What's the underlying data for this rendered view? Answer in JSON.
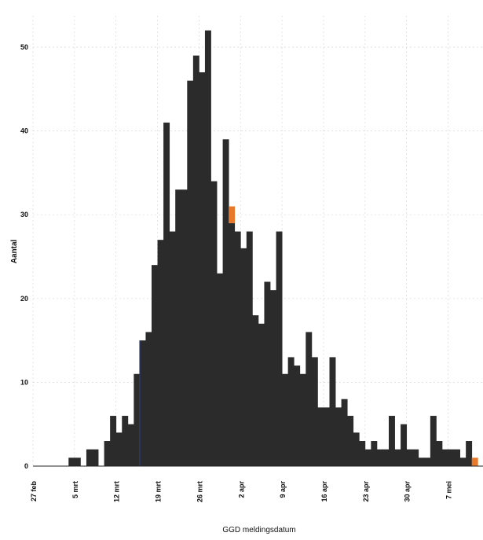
{
  "chart_data": {
    "type": "bar",
    "title": "",
    "xlabel": "GGD meldingsdatum",
    "ylabel": "Aantal",
    "ylim": [
      0,
      55
    ],
    "yticks": [
      0,
      10,
      20,
      30,
      40,
      50
    ],
    "grid": true,
    "legend": "none",
    "x_start": "27 feb",
    "x_end": "11 mei",
    "xtick_labels": [
      "27 feb",
      "5 mrt",
      "12 mrt",
      "19 mrt",
      "26 mrt",
      "2 apr",
      "9 apr",
      "16 apr",
      "23 apr",
      "30 apr",
      "7 mei"
    ],
    "series": [
      {
        "color": "#2b2b2b",
        "values": [
          0,
          0,
          0,
          0,
          0,
          0,
          1,
          1,
          0,
          2,
          2,
          0,
          3,
          6,
          4,
          6,
          5,
          11,
          15,
          16,
          24,
          27,
          41,
          28,
          33,
          33,
          46,
          49,
          47,
          52,
          34,
          23,
          39,
          29,
          28,
          26,
          28,
          18,
          17,
          22,
          21,
          28,
          11,
          13,
          12,
          11,
          16,
          13,
          7,
          7,
          13,
          7,
          8,
          6,
          4,
          3,
          2,
          3,
          2,
          2,
          6,
          2,
          5,
          2,
          2,
          1,
          1,
          6,
          3,
          2,
          2,
          2,
          1,
          3,
          0
        ]
      },
      {
        "color": "#e8782a",
        "values": [
          0,
          0,
          0,
          0,
          0,
          0,
          0,
          0,
          0,
          0,
          0,
          0,
          0,
          0,
          0,
          0,
          0,
          0,
          0,
          0,
          0,
          0,
          0,
          0,
          0,
          0,
          0,
          0,
          0,
          0,
          0,
          0,
          0,
          2,
          0,
          0,
          0,
          0,
          0,
          0,
          0,
          0,
          0,
          0,
          0,
          0,
          0,
          0,
          0,
          0,
          0,
          0,
          0,
          0,
          0,
          0,
          0,
          0,
          0,
          0,
          0,
          0,
          0,
          0,
          0,
          0,
          0,
          0,
          0,
          0,
          0,
          0,
          0,
          0,
          1
        ]
      }
    ],
    "colors": {
      "bar": "#2b2b2b",
      "accent": "#e8782a",
      "marker_line": "#2b3f9e"
    },
    "marker_line_x": "15 mrt"
  }
}
